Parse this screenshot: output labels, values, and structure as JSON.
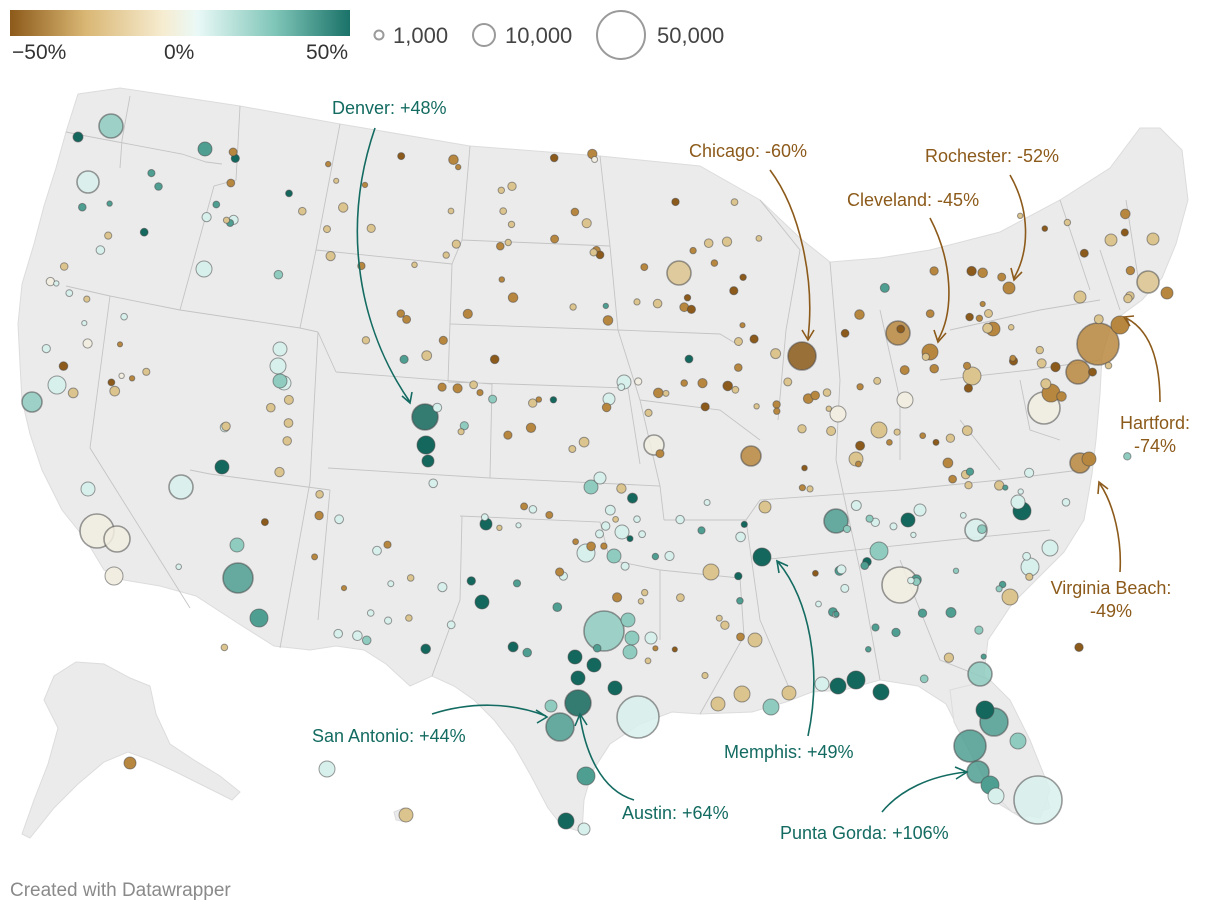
{
  "legend": {
    "color_ticks": [
      "−50%",
      "0%",
      "50%"
    ],
    "color_stops": [
      "#8c5a1a",
      "#d9b673",
      "#f6ecd0",
      "#eaf9f7",
      "#7fc5b8",
      "#1a7268"
    ],
    "size_labels": [
      "1,000",
      "10,000",
      "50,000"
    ]
  },
  "colors": {
    "decline": "#8c5a1a",
    "growth": "#136b61",
    "land": "#ebebeb",
    "border": "#c4c4c4"
  },
  "annotations": [
    {
      "id": "denver",
      "text": "Denver: +48%",
      "tone": "growth"
    },
    {
      "id": "chicago",
      "text": "Chicago: -60%",
      "tone": "decline"
    },
    {
      "id": "cleveland",
      "text": "Cleveland: -45%",
      "tone": "decline"
    },
    {
      "id": "rochester",
      "text": "Rochester: -52%",
      "tone": "decline"
    },
    {
      "id": "hartford",
      "lines": [
        "Hartford:",
        "-74%"
      ],
      "tone": "decline"
    },
    {
      "id": "virginia-beach",
      "lines": [
        "Virginia Beach:",
        "-49%"
      ],
      "tone": "decline"
    },
    {
      "id": "san-antonio",
      "text": "San Antonio: +44%",
      "tone": "growth"
    },
    {
      "id": "austin",
      "text": "Austin: +64%",
      "tone": "growth"
    },
    {
      "id": "memphis",
      "text": "Memphis: +49%",
      "tone": "growth"
    },
    {
      "id": "punta-gorda",
      "text": "Punta Gorda: +106%",
      "tone": "growth"
    }
  ],
  "credit": "Created with Datawrapper"
}
